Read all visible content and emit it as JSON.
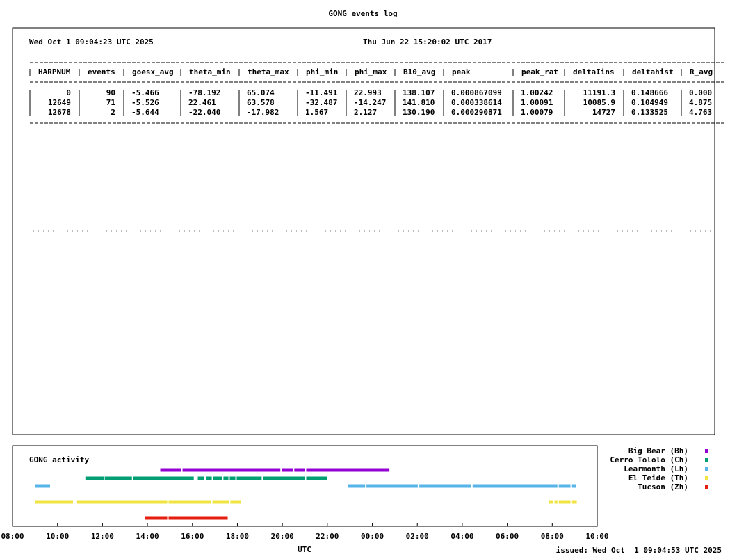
{
  "title": "GONG events log",
  "left_date": "Wed Oct 1 09:04:23 UTC 2025",
  "right_date": "Thu Jun 22 15:20:02 UTC 2017",
  "table": {
    "columns": [
      "HARPNUM",
      "events",
      "goesx_avg",
      "theta_min",
      "theta_max",
      "phi_min",
      "phi_max",
      "B10_avg",
      "peak",
      "peak_rat",
      "deltaIins",
      "deltahist",
      "R_avg"
    ],
    "rows": [
      [
        "0",
        "90",
        "-5.466",
        "-78.192",
        "65.074",
        "-11.491",
        "22.993",
        "138.107",
        "0.000867099",
        "1.00242",
        "11191.3",
        "0.148666",
        "0.000"
      ],
      [
        "12649",
        "71",
        "-5.526",
        "22.461",
        "63.578",
        "-32.487",
        "-14.247",
        "141.810",
        "0.000338614",
        "1.00091",
        "10085.9",
        "0.104949",
        "4.875"
      ],
      [
        "12678",
        "2",
        "-5.644",
        "-22.040",
        "-17.982",
        "1.567",
        "2.127",
        "130.190",
        "0.000290871",
        "1.00079",
        "14727",
        "0.133525",
        "4.763"
      ]
    ]
  },
  "chart_data": {
    "type": "timeline",
    "title": "GONG activity",
    "xlabel": "UTC",
    "xlim": [
      8,
      34
    ],
    "xticks": [
      {
        "value": 8,
        "label": "08:00"
      },
      {
        "value": 10,
        "label": "10:00"
      },
      {
        "value": 12,
        "label": "12:00"
      },
      {
        "value": 14,
        "label": "14:00"
      },
      {
        "value": 16,
        "label": "16:00"
      },
      {
        "value": 18,
        "label": "18:00"
      },
      {
        "value": 20,
        "label": "20:00"
      },
      {
        "value": 22,
        "label": "22:00"
      },
      {
        "value": 24,
        "label": "00:00"
      },
      {
        "value": 26,
        "label": "02:00"
      },
      {
        "value": 28,
        "label": "04:00"
      },
      {
        "value": 30,
        "label": "06:00"
      },
      {
        "value": 32,
        "label": "08:00"
      },
      {
        "value": 34,
        "label": "10:00"
      }
    ],
    "series": [
      {
        "name": "Big Bear (Bh)",
        "color": "#9400d3",
        "segments": [
          [
            14.57,
            15.5
          ],
          [
            15.56,
            19.91
          ],
          [
            19.98,
            20.47
          ],
          [
            20.53,
            21.0
          ],
          [
            21.06,
            24.76
          ]
        ]
      },
      {
        "name": "Cerro Tololo (Ch)",
        "color": "#009e73",
        "segments": [
          [
            11.24,
            12.07
          ],
          [
            12.1,
            13.31
          ],
          [
            13.37,
            16.06
          ],
          [
            16.24,
            16.52
          ],
          [
            16.61,
            16.86
          ],
          [
            16.92,
            17.32
          ],
          [
            17.38,
            17.6
          ],
          [
            17.66,
            17.91
          ],
          [
            17.97,
            19.08
          ],
          [
            19.14,
            20.99
          ],
          [
            21.06,
            21.98
          ]
        ]
      },
      {
        "name": "Learmonth (Lh)",
        "color": "#56b4e9",
        "segments": [
          [
            9.02,
            9.67
          ],
          [
            22.91,
            23.68
          ],
          [
            23.74,
            26.02
          ],
          [
            26.09,
            28.4
          ],
          [
            28.46,
            32.23
          ],
          [
            32.29,
            32.81
          ],
          [
            32.88,
            33.06
          ]
        ]
      },
      {
        "name": "El Teide (Th)",
        "color": "#f0e442",
        "segments": [
          [
            9.02,
            10.69
          ],
          [
            10.87,
            14.88
          ],
          [
            14.94,
            16.83
          ],
          [
            16.89,
            17.63
          ],
          [
            17.69,
            18.15
          ],
          [
            31.86,
            32.04
          ],
          [
            32.1,
            32.23
          ],
          [
            32.29,
            32.81
          ],
          [
            32.88,
            33.09
          ]
        ]
      },
      {
        "name": "Tucson (Zh)",
        "color": "#e51e10",
        "segments": [
          [
            13.9,
            14.88
          ],
          [
            14.94,
            17.57
          ]
        ]
      }
    ]
  },
  "footer": "issued: Wed Oct  1 09:04:53 UTC 2025"
}
